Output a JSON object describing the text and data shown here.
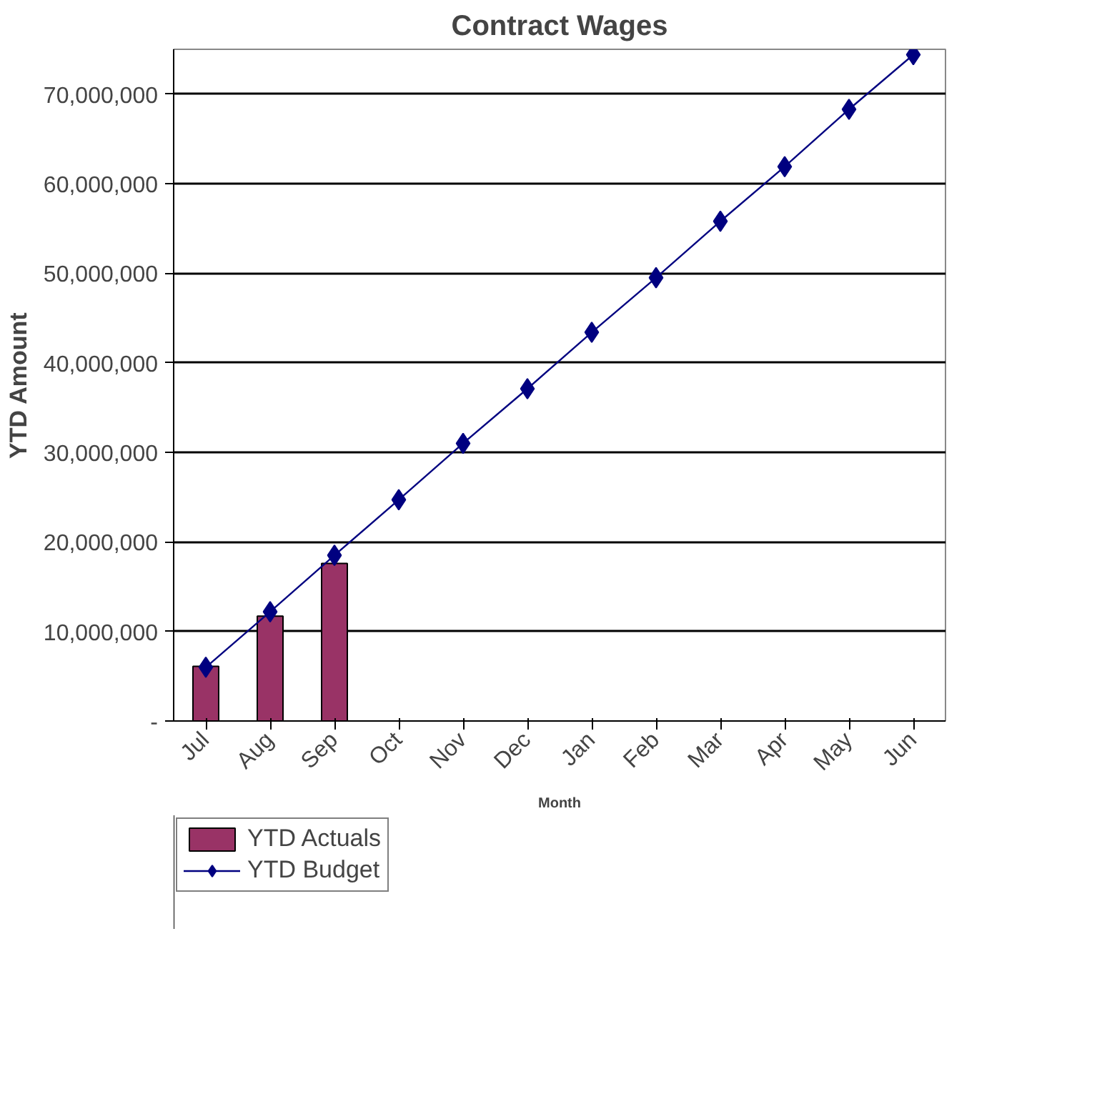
{
  "chart_data": {
    "type": "bar",
    "title": "Contract Wages",
    "xlabel": "Month",
    "ylabel": "YTD Amount",
    "categories": [
      "Jul",
      "Aug",
      "Sep",
      "Oct",
      "Nov",
      "Dec",
      "Jan",
      "Feb",
      "Mar",
      "Apr",
      "May",
      "Jun"
    ],
    "series": [
      {
        "name": "YTD Actuals",
        "color": "#993366",
        "values": [
          6100000,
          11700000,
          17600000,
          null,
          null,
          null,
          null,
          null,
          null,
          null,
          null,
          null
        ]
      },
      {
        "name": "YTD Budget",
        "type": "line",
        "color": "#000080",
        "marker": "diamond",
        "values": [
          6000000,
          12200000,
          18500000,
          24700000,
          31000000,
          37100000,
          43400000,
          49500000,
          55800000,
          61900000,
          68300000,
          74400000
        ]
      }
    ],
    "ylim": [
      0,
      75000000
    ],
    "yticks": [
      {
        "value": 0,
        "label": "-"
      },
      {
        "value": 10000000,
        "label": "10,000,000"
      },
      {
        "value": 20000000,
        "label": "20,000,000"
      },
      {
        "value": 30000000,
        "label": "30,000,000"
      },
      {
        "value": 40000000,
        "label": "40,000,000"
      },
      {
        "value": 50000000,
        "label": "50,000,000"
      },
      {
        "value": 60000000,
        "label": "60,000,000"
      },
      {
        "value": 70000000,
        "label": "70,000,000"
      }
    ],
    "grid": "y",
    "legend": "bottom left"
  }
}
